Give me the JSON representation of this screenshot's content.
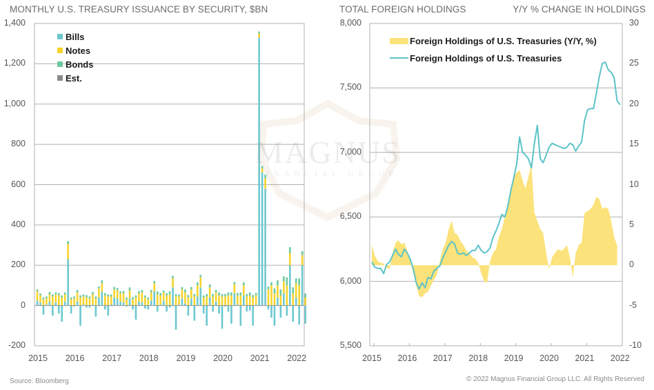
{
  "footer": {
    "source": "Source: Bloomberg",
    "copyright": "© 2022 Magnus Financial Group LLC. All Rights Reserved"
  },
  "watermark": {
    "name": "MAGNUS",
    "sub": "FINANCIAL GROUP"
  },
  "colors": {
    "bills": "#6cc8cf",
    "notes": "#f8d42a",
    "bonds": "#6dc9a0",
    "est": "#8a8a8a",
    "yoy_fill": "#fbe27a",
    "holdings_line": "#5bc3c8",
    "grid": "#b0b0b0"
  },
  "chart_data": [
    {
      "type": "bar",
      "title": "MONTHLY U.S. TREASURY ISSUANCE BY SECURITY, $BN",
      "xlabel": "",
      "ylabel": "",
      "ylim": [
        -200,
        1400
      ],
      "yticks": [
        "-200",
        "0",
        "200",
        "400",
        "600",
        "800",
        "1,000",
        "1,200",
        "1,400"
      ],
      "ytick_values": [
        -200,
        0,
        200,
        400,
        600,
        800,
        1000,
        1200,
        1400
      ],
      "xticks": [
        "2015",
        "2016",
        "2017",
        "2018",
        "2019",
        "2020",
        "2021",
        "2022"
      ],
      "grid": true,
      "legend": "top-left",
      "start_month": "2015-01",
      "series": [
        {
          "name": "Bills",
          "values": [
            25,
            15,
            -45,
            5,
            20,
            -50,
            15,
            -40,
            -80,
            20,
            230,
            -40,
            -5,
            20,
            -100,
            5,
            -10,
            -10,
            5,
            -55,
            40,
            70,
            -20,
            -50,
            5,
            40,
            35,
            20,
            15,
            -5,
            35,
            -20,
            -70,
            20,
            15,
            -15,
            -20,
            25,
            70,
            -30,
            5,
            25,
            -30,
            -10,
            90,
            -120,
            5,
            35,
            10,
            -50,
            35,
            -75,
            45,
            90,
            -40,
            -100,
            40,
            -30,
            20,
            -40,
            -115,
            -5,
            -30,
            -90,
            60,
            5,
            -100,
            50,
            -30,
            -25,
            -100,
            5,
            1330,
            660,
            580,
            -20,
            -60,
            -100,
            40,
            -60,
            60,
            -50,
            200,
            -80,
            40,
            -95,
            200,
            -90
          ]
        },
        {
          "name": "Notes",
          "values": [
            45,
            35,
            30,
            30,
            35,
            45,
            40,
            50,
            40,
            35,
            75,
            30,
            35,
            45,
            40,
            40,
            40,
            35,
            50,
            35,
            45,
            40,
            50,
            45,
            40,
            40,
            40,
            40,
            45,
            30,
            40,
            30,
            40,
            40,
            50,
            40,
            30,
            40,
            40,
            55,
            45,
            40,
            50,
            55,
            45,
            45,
            40,
            45,
            55,
            40,
            45,
            45,
            55,
            50,
            40,
            45,
            50,
            45,
            45,
            50,
            45,
            45,
            50,
            50,
            45,
            45,
            50,
            50,
            45,
            50,
            40,
            45,
            20,
            20,
            50,
            80,
            100,
            60,
            60,
            50,
            60,
            100,
            60,
            60,
            70,
            100,
            50,
            40,
            60,
            60
          ]
        },
        {
          "name": "Bonds",
          "values": [
            10,
            10,
            10,
            10,
            12,
            10,
            10,
            12,
            10,
            10,
            15,
            10,
            10,
            12,
            10,
            10,
            12,
            10,
            12,
            10,
            10,
            15,
            12,
            10,
            10,
            12,
            12,
            10,
            12,
            10,
            15,
            12,
            10,
            12,
            12,
            10,
            10,
            12,
            12,
            15,
            12,
            10,
            12,
            15,
            12,
            12,
            10,
            12,
            15,
            12,
            12,
            12,
            15,
            12,
            10,
            12,
            15,
            12,
            12,
            15,
            12,
            12,
            15,
            15,
            12,
            12,
            15,
            15,
            12,
            15,
            12,
            12,
            10,
            12,
            20,
            15,
            15,
            25,
            25,
            30,
            25,
            40,
            30,
            30,
            25,
            35,
            20,
            20,
            25,
            25
          ]
        },
        {
          "name": "Est.",
          "values": []
        }
      ]
    },
    {
      "type": "line",
      "title": "TOTAL FOREIGN HOLDINGS",
      "secondary_title": "Y/Y % CHANGE IN HOLDINGS",
      "ylim": [
        5500,
        8000
      ],
      "yticks": [
        "5,500",
        "6,000",
        "6,500",
        "7,000",
        "7,500",
        "8,000"
      ],
      "ytick_values": [
        5500,
        6000,
        6500,
        7000,
        7500,
        8000
      ],
      "y2lim": [
        -10,
        30
      ],
      "y2ticks": [
        "-10",
        "-5",
        "0",
        "5",
        "10",
        "15",
        "20",
        "25",
        "30"
      ],
      "y2tick_values": [
        -10,
        -5,
        0,
        5,
        10,
        15,
        20,
        25,
        30
      ],
      "xticks": [
        "2015",
        "2016",
        "2017",
        "2018",
        "2019",
        "2020",
        "2021",
        "2022"
      ],
      "grid": true,
      "legend": "top-left",
      "start_month": "2015-01",
      "series": [
        {
          "name": "Foreign Holdings of U.S. Treasuries (Y/Y, %)",
          "type": "area",
          "axis": "right",
          "values": [
            2.5,
            1.2,
            0.5,
            0.3,
            0.2,
            -0.3,
            -0.5,
            1.5,
            2.8,
            3.1,
            2.6,
            2.8,
            1.8,
            0.5,
            -1.0,
            -2.5,
            -3.8,
            -4.0,
            -3.5,
            -3.3,
            -2.5,
            -1.8,
            -1.2,
            0.5,
            2.0,
            2.8,
            4.5,
            5.5,
            4.0,
            3.8,
            3.0,
            2.5,
            1.8,
            1.5,
            1.0,
            0.8,
            0.3,
            -1.0,
            -2.0,
            -2.2,
            0.5,
            1.5,
            2.0,
            3.5,
            4.5,
            6.0,
            7.5,
            9.5,
            11.0,
            11.5,
            11.8,
            10.5,
            9.5,
            11.0,
            12.5,
            6.5,
            5.5,
            4.5,
            4.0,
            1.5,
            -0.5,
            1.0,
            1.5,
            2.0,
            1.8,
            2.0,
            2.5,
            1.0,
            -1.5,
            1.5,
            2.5,
            2.8,
            6.5,
            6.7,
            7.0,
            7.5,
            8.5,
            8.2,
            7.0,
            7.2,
            7.0,
            5.5,
            3.5,
            2.5
          ]
        },
        {
          "name": "Foreign Holdings of U.S. Treasuries",
          "type": "line",
          "axis": "left",
          "values": [
            6150,
            6110,
            6100,
            6100,
            6060,
            6130,
            6150,
            6200,
            6250,
            6210,
            6190,
            6250,
            6220,
            6170,
            6100,
            5990,
            5940,
            5990,
            5950,
            6030,
            6020,
            6080,
            6100,
            6120,
            6180,
            6230,
            6280,
            6310,
            6290,
            6220,
            6210,
            6220,
            6200,
            6220,
            6240,
            6240,
            6280,
            6240,
            6220,
            6230,
            6260,
            6340,
            6390,
            6450,
            6520,
            6500,
            6580,
            6700,
            6800,
            6910,
            7120,
            7000,
            6980,
            6950,
            6880,
            7070,
            7210,
            6950,
            6920,
            6980,
            7040,
            7070,
            7060,
            7050,
            7040,
            7030,
            7040,
            7070,
            7060,
            7010,
            7050,
            7080,
            7250,
            7330,
            7340,
            7340,
            7460,
            7590,
            7690,
            7700,
            7640,
            7620,
            7580,
            7400,
            7370
          ]
        }
      ]
    }
  ]
}
